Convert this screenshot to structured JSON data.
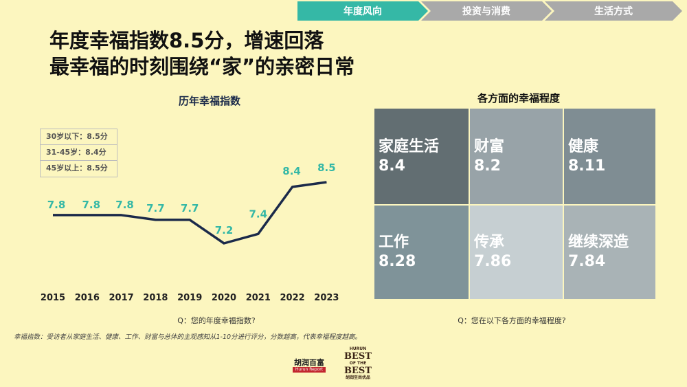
{
  "nav": {
    "tabs": [
      {
        "label": "年度风向",
        "active": true
      },
      {
        "label": "投资与消费",
        "active": false
      },
      {
        "label": "生活方式",
        "active": false
      }
    ]
  },
  "headline": {
    "line1": "年度幸福指数8.5分，增速回落",
    "line2": "最幸福的时刻围绕“家”的亲密日常"
  },
  "left_panel": {
    "title": "历年幸福指数",
    "age_groups": [
      "30岁以下：8.5分",
      "31-45岁：8.4分",
      "45岁以上：8.5分"
    ],
    "question": "Q：您的年度幸福指数?"
  },
  "right_panel": {
    "title": "各方面的幸福程度",
    "question": "Q：您在以下各方面的幸福程度?"
  },
  "footnote": "幸福指数：受访者从家庭生活、健康、工作、财富与总体的主观感知从1-10分进行评分，分数越高，代表幸福程度越高。",
  "logos": {
    "hurun_cn": "胡润百富",
    "hurun_en": "Hurun Report",
    "best_top": "HURUN",
    "best_main1": "BEST",
    "best_of": "OF THE",
    "best_main2": "BEST",
    "best_cn": "胡润至尚优品"
  },
  "colors": {
    "line": "#1b2a4a",
    "label": "#35b8a6",
    "accent": "#35b8a6"
  },
  "chart_data": [
    {
      "type": "line",
      "title": "历年幸福指数",
      "x": [
        "2015",
        "2016",
        "2017",
        "2018",
        "2019",
        "2020",
        "2021",
        "2022",
        "2023"
      ],
      "series": [
        {
          "values": [
            7.8,
            7.8,
            7.8,
            7.7,
            7.7,
            7.2,
            7.4,
            8.4,
            8.5
          ]
        }
      ],
      "ylim": [
        6.5,
        8.8
      ],
      "grid": false
    },
    {
      "type": "heatmap",
      "title": "各方面的幸福程度",
      "categories": [
        "家庭生活",
        "财富",
        "健康",
        "工作",
        "传承",
        "继续深造"
      ],
      "values": [
        8.4,
        8.2,
        8.11,
        8.28,
        7.86,
        7.84
      ],
      "value_labels": [
        "8.4",
        "8.2",
        "8.11",
        "8.28",
        "7.86",
        "7.84"
      ],
      "cell_colors": [
        "#626e72",
        "#98a3a8",
        "#7f8d93",
        "#7f9399",
        "#c6cfd2",
        "#a9b3b6"
      ]
    }
  ]
}
